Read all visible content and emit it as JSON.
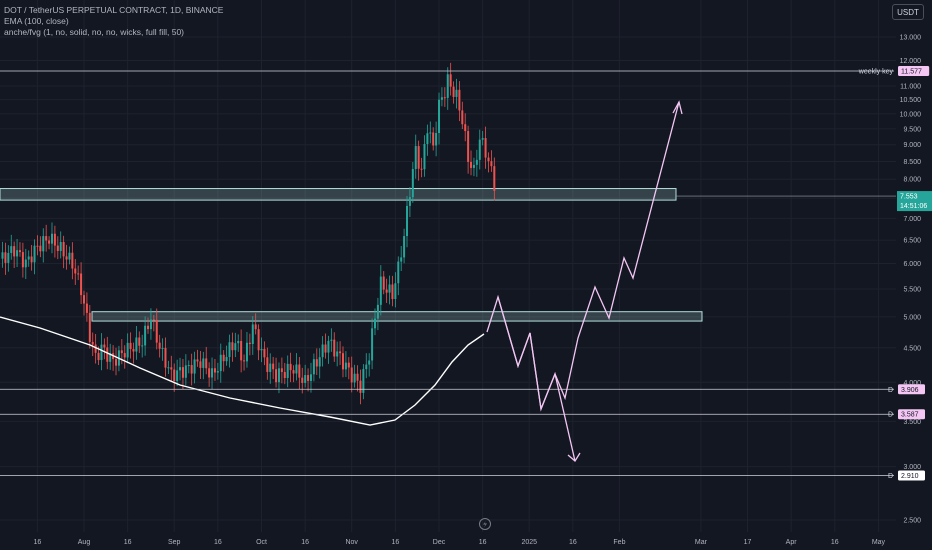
{
  "header": {
    "symbol_line": "DOT / TetherUS PERPETUAL CONTRACT, 1D, BINANCE",
    "indicator_1": "EMA (100, close)",
    "indicator_2": "anche/fvg (1, no, solid, no, no, wicks, full fill, 50)",
    "currency_button": "USDT"
  },
  "chart_data": {
    "type": "candlestick",
    "y_axis": {
      "scale": "log",
      "ticks": [
        "13.000",
        "12.000",
        "11.000",
        "10.500",
        "10.000",
        "9.500",
        "9.000",
        "8.500",
        "8.000",
        "7.500",
        "7.000",
        "6.500",
        "6.000",
        "5.500",
        "5.000",
        "4.500",
        "4.000",
        "3.500",
        "3.000",
        "2.500"
      ]
    },
    "x_axis": {
      "ticks": [
        "16",
        "Aug",
        "16",
        "Sep",
        "16",
        "Oct",
        "16",
        "Nov",
        "16",
        "Dec",
        "16",
        "2025",
        "16",
        "Feb",
        "Mar",
        "17",
        "Apr",
        "16",
        "May"
      ]
    },
    "price_levels": [
      {
        "label": "weekly key",
        "value": "11.577",
        "color": "#f3c6f3"
      },
      {
        "label": "D",
        "value": "3.906",
        "color": "#f3c6f3"
      },
      {
        "label": "D",
        "value": "3.587",
        "color": "#f3c6f3"
      },
      {
        "label": "D",
        "value": "2.910",
        "color": "#ffffff"
      }
    ],
    "current_price": {
      "value": "7.553",
      "countdown": "14:51:06",
      "color": "#26a69a"
    },
    "zones": [
      {
        "name": "upper-zone",
        "low": 7.45,
        "high": 7.75,
        "color": "#b2dfdb"
      },
      {
        "name": "lower-zone",
        "low": 4.93,
        "high": 5.09,
        "color": "#b2dfdb"
      }
    ],
    "colors": {
      "up": "#26a69a",
      "down": "#ef5350",
      "ema": "#ffffff",
      "projection": "#f3c6f3"
    }
  }
}
